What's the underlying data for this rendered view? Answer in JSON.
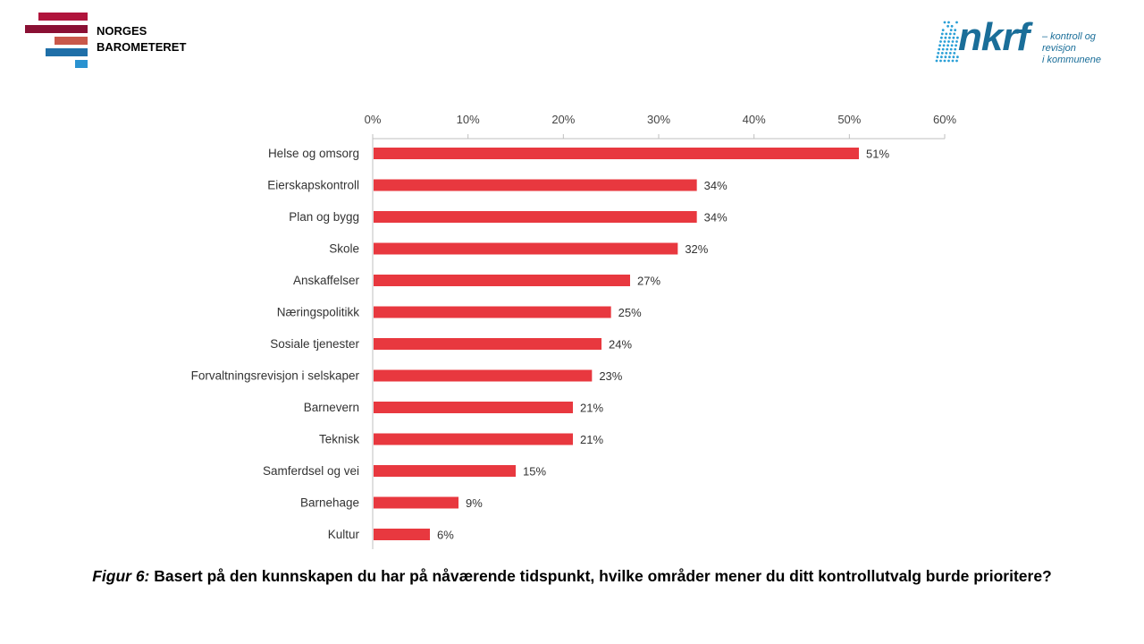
{
  "header": {
    "left_logo": {
      "line1": "NORGES",
      "line2": "BAROMETERET",
      "stripe_colors": [
        "#b0143c",
        "#8a1034",
        "#c9584a",
        "#1f6fa8",
        "#2a92d0"
      ]
    },
    "right_logo": {
      "wordmark": "nkrf",
      "tagline": "– kontroll og revisjon\ni kommunene",
      "color": "#1a6e99",
      "dot_color": "#2a9fd6"
    }
  },
  "chart_data": {
    "type": "bar",
    "orientation": "horizontal",
    "categories": [
      "Helse og omsorg",
      "Eierskapskontroll",
      "Plan og bygg",
      "Skole",
      "Anskaffelser",
      "Næringspolitikk",
      "Sosiale tjenester",
      "Forvaltningsrevisjon i selskaper",
      "Barnevern",
      "Teknisk",
      "Samferdsel og vei",
      "Barnehage",
      "Kultur"
    ],
    "values": [
      51,
      34,
      34,
      32,
      27,
      25,
      24,
      23,
      21,
      21,
      15,
      9,
      6
    ],
    "data_labels": [
      "51%",
      "34%",
      "34%",
      "32%",
      "27%",
      "25%",
      "24%",
      "23%",
      "21%",
      "21%",
      "15%",
      "9%",
      "6%"
    ],
    "xlim": [
      0,
      60
    ],
    "x_ticks": [
      0,
      10,
      20,
      30,
      40,
      50,
      60
    ],
    "x_tick_labels": [
      "0%",
      "10%",
      "20%",
      "30%",
      "40%",
      "50%",
      "60%"
    ],
    "axis_position": "top",
    "grid": false,
    "bar_color": "#e8383f",
    "title": "",
    "xlabel": "",
    "ylabel": ""
  },
  "caption": {
    "prefix": "Figur 6:",
    "text": " Basert på den kunnskapen du har på nåværende tidspunkt, hvilke områder mener du ditt kontrollutvalg burde prioritere?"
  }
}
